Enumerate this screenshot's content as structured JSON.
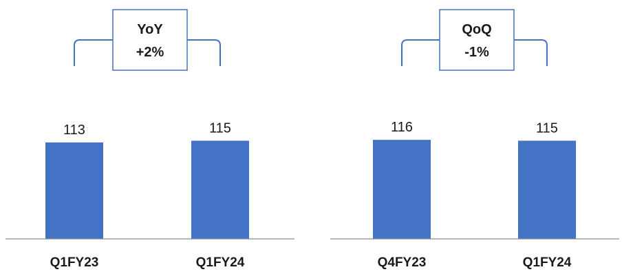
{
  "colors": {
    "bar": "#4472c4",
    "bracket": "#4472c4",
    "box_border": "#4472c4",
    "axis": "#8c8c8c",
    "text": "#1a1a1a"
  },
  "chart_data": [
    {
      "type": "bar",
      "categories": [
        "Q1FY23",
        "Q1FY24"
      ],
      "values": [
        113,
        115
      ],
      "data_labels": [
        "113",
        "115"
      ],
      "callout": {
        "line1": "YoY",
        "line2": "+2%"
      },
      "ylim": [
        0,
        140
      ],
      "grid": false,
      "title": "",
      "xlabel": "",
      "ylabel": ""
    },
    {
      "type": "bar",
      "categories": [
        "Q4FY23",
        "Q1FY24"
      ],
      "values": [
        116,
        115
      ],
      "data_labels": [
        "116",
        "115"
      ],
      "callout": {
        "line1": "QoQ",
        "line2": "-1%"
      },
      "ylim": [
        0,
        140
      ],
      "grid": false,
      "title": "",
      "xlabel": "",
      "ylabel": ""
    }
  ]
}
